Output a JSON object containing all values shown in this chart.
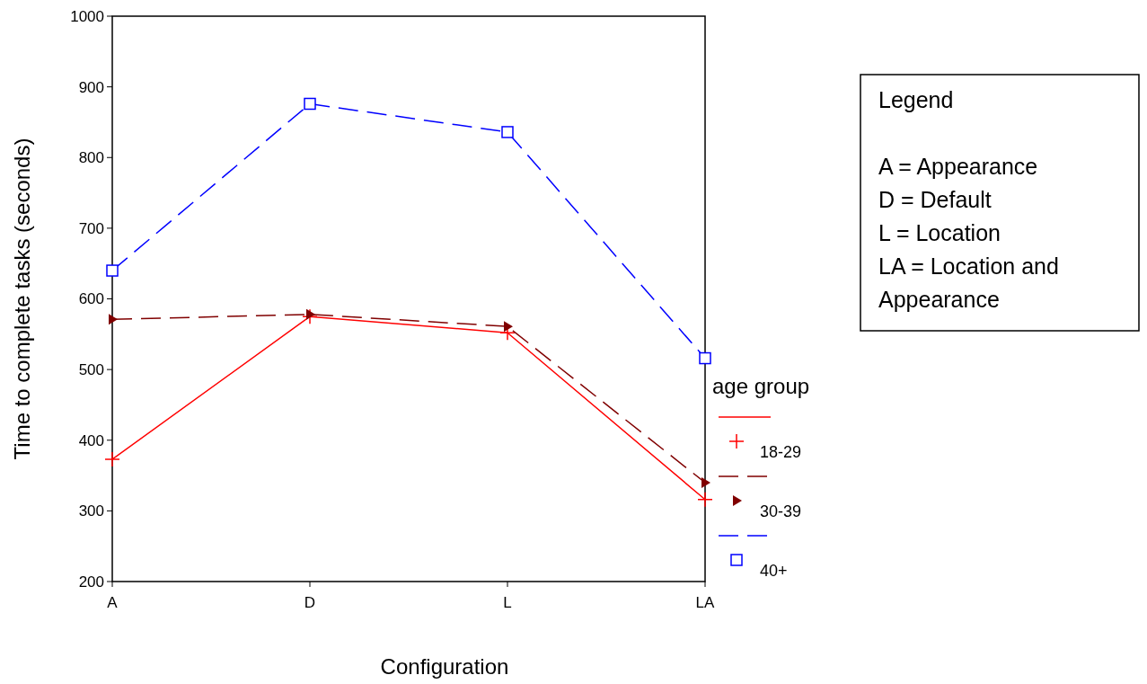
{
  "chart_data": {
    "type": "line",
    "xlabel": "Configuration",
    "ylabel": "Time to complete tasks (seconds)",
    "categories": [
      "A",
      "D",
      "L",
      "LA"
    ],
    "ylim": [
      200,
      1000
    ],
    "yticks": [
      200,
      300,
      400,
      500,
      600,
      700,
      800,
      900,
      1000
    ],
    "grid": false,
    "legend": "right",
    "legend_title": "age group",
    "series": [
      {
        "name": "18-29",
        "color": "#ff0000",
        "marker": "cross",
        "line_style": "solid",
        "values": [
          373,
          575,
          552,
          316
        ]
      },
      {
        "name": "30-39",
        "color": "#800000",
        "marker": "triangle",
        "line_style": "dashed",
        "values": [
          571,
          578,
          561,
          340
        ]
      },
      {
        "name": "40+",
        "color": "#0000ff",
        "marker": "square",
        "line_style": "dashed",
        "values": [
          640,
          876,
          836,
          516
        ]
      }
    ],
    "annotations": [
      "Legend",
      "A = Appearance",
      "D = Default",
      "L = Location",
      "LA = Location and Appearance"
    ]
  }
}
